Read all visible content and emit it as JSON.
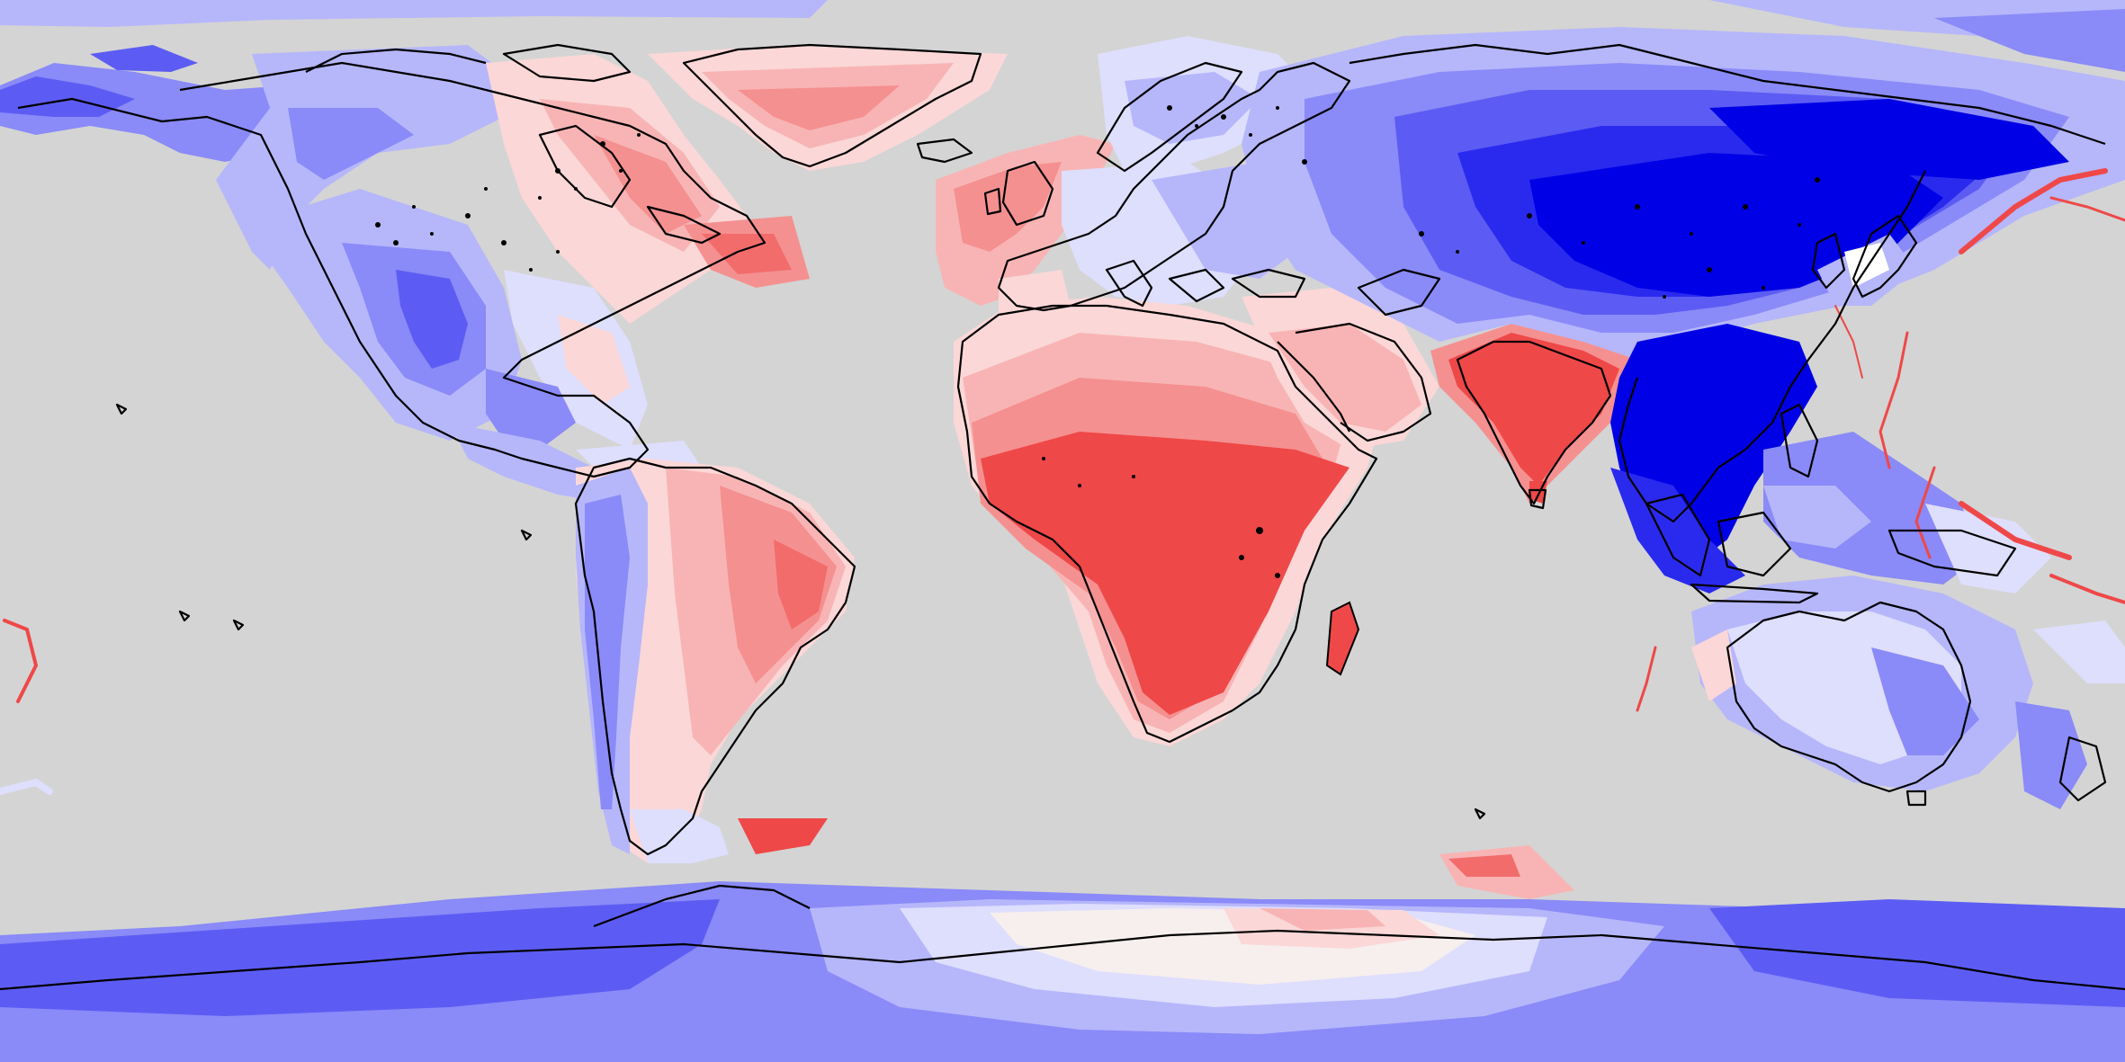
{
  "map": {
    "projection": "equirectangular",
    "ocean_color": "#d4d4d4",
    "coastline_color": "#000000",
    "color_scale": {
      "type": "diverging",
      "levels_blue": [
        "#0000e6",
        "#2a2aef",
        "#5c5cf4",
        "#8a8af8",
        "#b6b6fb",
        "#dedefd"
      ],
      "neutral": "#f7eeee",
      "levels_red": [
        "#fbd7d7",
        "#f8b4b4",
        "#f59090",
        "#f26c6c",
        "#ef4848"
      ]
    },
    "regions": [
      {
        "name": "north-america-west",
        "tone": "blue-mid"
      },
      {
        "name": "rocky-mountains",
        "tone": "blue-strong"
      },
      {
        "name": "canada-east",
        "tone": "red-light"
      },
      {
        "name": "greenland",
        "tone": "red-light"
      },
      {
        "name": "western-europe",
        "tone": "red-light"
      },
      {
        "name": "south-america-west",
        "tone": "blue-light"
      },
      {
        "name": "south-america-east",
        "tone": "red-mid"
      },
      {
        "name": "africa",
        "tone": "red-strong"
      },
      {
        "name": "arabian-peninsula",
        "tone": "red-light"
      },
      {
        "name": "india",
        "tone": "red-strong"
      },
      {
        "name": "central-asia",
        "tone": "blue-strong"
      },
      {
        "name": "east-asia",
        "tone": "blue-strong"
      },
      {
        "name": "southeast-asia",
        "tone": "blue-strong"
      },
      {
        "name": "australia",
        "tone": "blue-light"
      },
      {
        "name": "antarctica-east",
        "tone": "blue-mid"
      },
      {
        "name": "antarctica-central",
        "tone": "red-light"
      },
      {
        "name": "antarctica-west",
        "tone": "blue-mid"
      }
    ]
  }
}
